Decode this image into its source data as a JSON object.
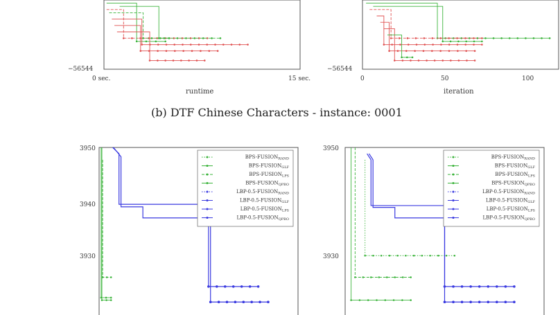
{
  "caption": "(b) DTF Chinese Characters - instance: 0001",
  "colors": {
    "green": "#3cb43c",
    "red": "#e05050",
    "blue": "#3a3ae0",
    "frame": "#555555"
  },
  "chart_data": [
    {
      "type": "line",
      "panel": "top-left",
      "xlabel": "runtime",
      "x_ticks": [
        "0 sec.",
        "15 sec."
      ],
      "y_ticks": [
        "−56544"
      ],
      "xlim": [
        0,
        15
      ],
      "series": [
        {
          "color": "red",
          "style": "dashed",
          "points": [
            [
              0.2,
              3
            ],
            [
              1.5,
              3
            ],
            [
              1.5,
              12
            ],
            [
              7.9,
              12
            ]
          ]
        },
        {
          "color": "green",
          "style": "solid",
          "points": [
            [
              0.2,
              1
            ],
            [
              2.5,
              1
            ],
            [
              2.5,
              13
            ],
            [
              4.7,
              13
            ]
          ]
        },
        {
          "color": "green",
          "style": "dashed",
          "points": [
            [
              0.4,
              4
            ],
            [
              3.0,
              4
            ],
            [
              3.0,
              12
            ],
            [
              8.9,
              12
            ]
          ]
        },
        {
          "color": "red",
          "style": "solid",
          "points": [
            [
              0.6,
              6
            ],
            [
              2.9,
              6
            ],
            [
              2.9,
              14
            ],
            [
              11.0,
              14
            ]
          ]
        },
        {
          "color": "red",
          "style": "solid",
          "points": [
            [
              0.8,
              8
            ],
            [
              2.8,
              8
            ],
            [
              2.8,
              16
            ],
            [
              8.7,
              16
            ]
          ]
        },
        {
          "color": "red",
          "style": "solid",
          "points": [
            [
              1.0,
              10
            ],
            [
              3.5,
              10
            ],
            [
              3.5,
              19
            ],
            [
              7.7,
              19
            ]
          ]
        },
        {
          "color": "green",
          "style": "solid",
          "points": [
            [
              1.2,
              2
            ],
            [
              4.2,
              2
            ],
            [
              4.2,
              12
            ],
            [
              5.0,
              12
            ]
          ]
        }
      ]
    },
    {
      "type": "line",
      "panel": "top-right",
      "xlabel": "iteration",
      "x_ticks": [
        "0",
        "50",
        "100"
      ],
      "y_ticks": [
        "−56544"
      ],
      "xlim": [
        0,
        110
      ],
      "series": [
        {
          "color": "green",
          "style": "solid",
          "points": [
            [
              2,
              1
            ],
            [
              42,
              1
            ],
            [
              42,
              12
            ],
            [
              105,
              12
            ]
          ]
        },
        {
          "color": "red",
          "style": "dashed",
          "points": [
            [
              4,
              3
            ],
            [
              16,
              3
            ],
            [
              16,
              12
            ],
            [
              67,
              12
            ]
          ]
        },
        {
          "color": "green",
          "style": "solid",
          "points": [
            [
              6,
              2
            ],
            [
              45,
              2
            ],
            [
              45,
              13
            ],
            [
              67,
              13
            ]
          ]
        },
        {
          "color": "red",
          "style": "solid",
          "points": [
            [
              8,
              5
            ],
            [
              12,
              5
            ],
            [
              12,
              14
            ],
            [
              67,
              14
            ]
          ]
        },
        {
          "color": "red",
          "style": "solid",
          "points": [
            [
              10,
              7
            ],
            [
              15,
              7
            ],
            [
              15,
              16
            ],
            [
              63,
              16
            ]
          ]
        },
        {
          "color": "red",
          "style": "solid",
          "points": [
            [
              12,
              9
            ],
            [
              18,
              9
            ],
            [
              18,
              19
            ],
            [
              63,
              19
            ]
          ]
        },
        {
          "color": "green",
          "style": "solid",
          "points": [
            [
              14,
              11
            ],
            [
              22,
              11
            ],
            [
              22,
              18
            ],
            [
              28,
              18
            ]
          ]
        }
      ]
    },
    {
      "type": "line",
      "panel": "bottom-left",
      "y_ticks": [
        "3950",
        "3940",
        "3930"
      ],
      "ylim": [
        3922,
        3950
      ],
      "xlim": [
        0,
        100
      ],
      "legend": [
        "BPS-FUSION_{RAND}",
        "BPS-FUSION_{GLF}",
        "BPS-FUSION_{LPS}",
        "BPS-FUSION_{QPBO}",
        "LBP-0.5-FUSION_{RAND}",
        "LBP-0.5-FUSION_{GLF}",
        "LBP-0.5-FUSION_{LPS}",
        "LBP-0.5-FUSION_{QPBO}"
      ],
      "legend_position": "top-right",
      "series": [
        {
          "color": "green",
          "style": "solid",
          "points": [
            [
              1,
              3950
            ],
            [
              1,
              3925.7
            ],
            [
              6,
              3925.7
            ]
          ]
        },
        {
          "color": "green",
          "style": "solid",
          "points": [
            [
              1.4,
              3950
            ],
            [
              1.4,
              3925.3
            ],
            [
              6,
              3925.3
            ]
          ]
        },
        {
          "color": "green",
          "style": "dashed",
          "points": [
            [
              1.8,
              3948
            ],
            [
              1.8,
              3929
            ],
            [
              6,
              3929
            ]
          ]
        },
        {
          "color": "blue",
          "style": "solid",
          "points": [
            [
              6.8,
              3950
            ],
            [
              10,
              3949
            ],
            [
              10,
              3940.8
            ],
            [
              31,
              3940.8
            ],
            [
              55,
              3940.8
            ],
            [
              55,
              3927.5
            ],
            [
              80,
              3927.5
            ]
          ]
        },
        {
          "color": "blue",
          "style": "solid",
          "points": [
            [
              7.2,
              3950
            ],
            [
              11,
              3948.5
            ],
            [
              11,
              3940.4
            ],
            [
              22,
              3940.4
            ],
            [
              22,
              3938.6
            ],
            [
              56,
              3938.6
            ],
            [
              56,
              3925
            ],
            [
              85,
              3925
            ]
          ]
        }
      ]
    },
    {
      "type": "line",
      "panel": "bottom-right",
      "y_ticks": [
        "3950",
        "3930"
      ],
      "ylim": [
        3922,
        3950
      ],
      "xlim": [
        0,
        100
      ],
      "legend": [
        "BPS-FUSION_{RAND}",
        "BPS-FUSION_{GLF}",
        "BPS-FUSION_{LPS}",
        "BPS-FUSION_{QPBO}",
        "LBP-0.5-FUSION_{RAND}",
        "LBP-0.5-FUSION_{GLF}",
        "LBP-0.5-FUSION_{LPS}",
        "LBP-0.5-FUSION_{QPBO}"
      ],
      "legend_position": "top-right",
      "series": [
        {
          "color": "green",
          "style": "solid",
          "points": [
            [
              3,
              3950
            ],
            [
              3,
              3925.3
            ],
            [
              33,
              3925.3
            ]
          ]
        },
        {
          "color": "green",
          "style": "dashed",
          "points": [
            [
              5,
              3950
            ],
            [
              5,
              3929
            ],
            [
              33,
              3929
            ]
          ]
        },
        {
          "color": "green",
          "style": "dotted",
          "points": [
            [
              10,
              3948
            ],
            [
              10,
              3932.5
            ],
            [
              55,
              3932.5
            ]
          ]
        },
        {
          "color": "blue",
          "style": "solid",
          "points": [
            [
              11,
              3949
            ],
            [
              13,
              3948
            ],
            [
              13,
              3940.6
            ],
            [
              50,
              3940.6
            ],
            [
              50,
              3927.5
            ],
            [
              85,
              3927.5
            ]
          ]
        },
        {
          "color": "blue",
          "style": "solid",
          "points": [
            [
              12,
              3949
            ],
            [
              14,
              3948
            ],
            [
              14,
              3940.3
            ],
            [
              25,
              3940.3
            ],
            [
              25,
              3938.6
            ],
            [
              50,
              3938.6
            ],
            [
              50,
              3925
            ],
            [
              85,
              3925
            ]
          ]
        }
      ]
    }
  ]
}
